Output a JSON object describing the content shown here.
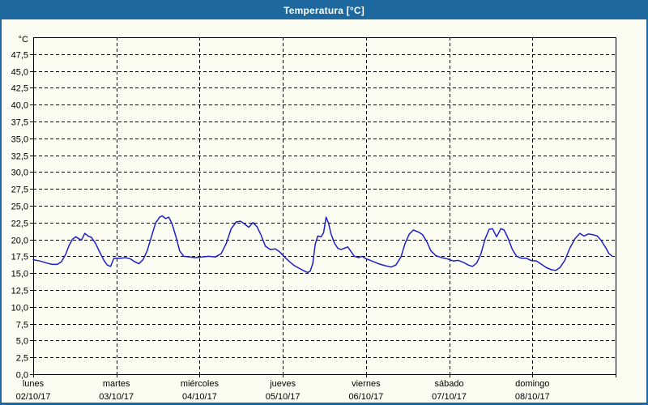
{
  "window": {
    "title": "Temperatura [°C]"
  },
  "colors": {
    "titlebar_bg": "#1d689f",
    "window_border": "#1d689f",
    "window_bg": "#fbfcf2",
    "title_text": "#ffffff",
    "axis_text": "#000000",
    "grid": "#000000",
    "plot_border": "#000000",
    "series_line": "#1f1fc8"
  },
  "chart_data": {
    "type": "line",
    "title": "Temperatura [°C]",
    "legend": "none",
    "grid": "dashed",
    "y_axis": {
      "label": "°C",
      "min": 0,
      "max": 50,
      "tick_step": 2.5,
      "tick_labels": [
        "0,0",
        "2,5",
        "5,0",
        "7,5",
        "10,0",
        "12,5",
        "15,0",
        "17,5",
        "20,0",
        "22,5",
        "25,0",
        "27,5",
        "30,0",
        "32,5",
        "35,0",
        "37,5",
        "40,0",
        "42,5",
        "45,0",
        "47,5"
      ]
    },
    "x_axis": {
      "range_days": [
        0,
        7
      ],
      "days": [
        {
          "name": "lunes",
          "date": "02/10/17"
        },
        {
          "name": "martes",
          "date": "03/10/17"
        },
        {
          "name": "miércoles",
          "date": "04/10/17"
        },
        {
          "name": "jueves",
          "date": "05/10/17"
        },
        {
          "name": "viernes",
          "date": "06/10/17"
        },
        {
          "name": "sábado",
          "date": "07/10/17"
        },
        {
          "name": "domingo",
          "date": "08/10/17"
        }
      ]
    },
    "series": [
      {
        "name": "Temperatura",
        "unit": "°C",
        "points": [
          [
            0.0,
            17.0
          ],
          [
            0.08,
            16.8
          ],
          [
            0.16,
            16.5
          ],
          [
            0.23,
            16.3
          ],
          [
            0.29,
            16.3
          ],
          [
            0.34,
            16.7
          ],
          [
            0.39,
            17.8
          ],
          [
            0.43,
            19.1
          ],
          [
            0.47,
            20.0
          ],
          [
            0.51,
            20.4
          ],
          [
            0.55,
            20.1
          ],
          [
            0.58,
            19.9
          ],
          [
            0.62,
            20.9
          ],
          [
            0.66,
            20.5
          ],
          [
            0.7,
            20.3
          ],
          [
            0.75,
            19.4
          ],
          [
            0.8,
            18.1
          ],
          [
            0.85,
            16.9
          ],
          [
            0.89,
            16.2
          ],
          [
            0.93,
            16.0
          ],
          [
            0.97,
            17.2
          ],
          [
            1.04,
            17.2
          ],
          [
            1.11,
            17.3
          ],
          [
            1.17,
            17.1
          ],
          [
            1.22,
            16.7
          ],
          [
            1.27,
            16.4
          ],
          [
            1.32,
            17.0
          ],
          [
            1.37,
            18.3
          ],
          [
            1.42,
            20.4
          ],
          [
            1.47,
            22.4
          ],
          [
            1.52,
            23.3
          ],
          [
            1.55,
            23.5
          ],
          [
            1.59,
            23.1
          ],
          [
            1.63,
            23.3
          ],
          [
            1.67,
            22.3
          ],
          [
            1.72,
            20.2
          ],
          [
            1.76,
            18.3
          ],
          [
            1.81,
            17.5
          ],
          [
            1.88,
            17.4
          ],
          [
            1.95,
            17.3
          ],
          [
            2.03,
            17.4
          ],
          [
            2.11,
            17.5
          ],
          [
            2.19,
            17.4
          ],
          [
            2.26,
            17.9
          ],
          [
            2.32,
            19.4
          ],
          [
            2.38,
            21.6
          ],
          [
            2.44,
            22.6
          ],
          [
            2.49,
            22.7
          ],
          [
            2.54,
            22.3
          ],
          [
            2.59,
            21.8
          ],
          [
            2.64,
            22.5
          ],
          [
            2.69,
            21.9
          ],
          [
            2.74,
            20.6
          ],
          [
            2.79,
            19.0
          ],
          [
            2.85,
            18.5
          ],
          [
            2.91,
            18.6
          ],
          [
            2.96,
            18.2
          ],
          [
            3.02,
            17.4
          ],
          [
            3.08,
            16.7
          ],
          [
            3.14,
            16.1
          ],
          [
            3.2,
            15.7
          ],
          [
            3.26,
            15.3
          ],
          [
            3.3,
            15.1
          ],
          [
            3.33,
            15.3
          ],
          [
            3.36,
            16.4
          ],
          [
            3.39,
            19.3
          ],
          [
            3.42,
            20.5
          ],
          [
            3.46,
            20.4
          ],
          [
            3.49,
            21.0
          ],
          [
            3.52,
            23.3
          ],
          [
            3.55,
            22.4
          ],
          [
            3.58,
            20.8
          ],
          [
            3.62,
            19.5
          ],
          [
            3.66,
            18.7
          ],
          [
            3.7,
            18.5
          ],
          [
            3.74,
            18.7
          ],
          [
            3.78,
            18.9
          ],
          [
            3.82,
            18.2
          ],
          [
            3.86,
            17.5
          ],
          [
            3.91,
            17.3
          ],
          [
            3.95,
            17.5
          ],
          [
            3.99,
            17.2
          ],
          [
            4.07,
            16.8
          ],
          [
            4.15,
            16.4
          ],
          [
            4.23,
            16.1
          ],
          [
            4.3,
            15.9
          ],
          [
            4.36,
            16.2
          ],
          [
            4.42,
            17.4
          ],
          [
            4.47,
            19.4
          ],
          [
            4.52,
            20.8
          ],
          [
            4.57,
            21.4
          ],
          [
            4.63,
            21.1
          ],
          [
            4.68,
            20.7
          ],
          [
            4.73,
            19.7
          ],
          [
            4.78,
            18.3
          ],
          [
            4.84,
            17.6
          ],
          [
            4.91,
            17.3
          ],
          [
            4.98,
            17.1
          ],
          [
            5.05,
            16.8
          ],
          [
            5.11,
            16.9
          ],
          [
            5.17,
            16.6
          ],
          [
            5.23,
            16.2
          ],
          [
            5.28,
            16.0
          ],
          [
            5.33,
            16.5
          ],
          [
            5.38,
            17.8
          ],
          [
            5.43,
            20.0
          ],
          [
            5.48,
            21.5
          ],
          [
            5.52,
            21.6
          ],
          [
            5.57,
            20.4
          ],
          [
            5.62,
            21.6
          ],
          [
            5.66,
            21.4
          ],
          [
            5.71,
            20.1
          ],
          [
            5.76,
            18.5
          ],
          [
            5.81,
            17.5
          ],
          [
            5.87,
            17.2
          ],
          [
            5.93,
            17.2
          ],
          [
            5.98,
            16.9
          ],
          [
            6.05,
            16.8
          ],
          [
            6.11,
            16.3
          ],
          [
            6.17,
            15.8
          ],
          [
            6.23,
            15.5
          ],
          [
            6.28,
            15.4
          ],
          [
            6.33,
            15.8
          ],
          [
            6.39,
            16.9
          ],
          [
            6.45,
            18.7
          ],
          [
            6.51,
            20.1
          ],
          [
            6.57,
            20.9
          ],
          [
            6.62,
            20.5
          ],
          [
            6.67,
            20.8
          ],
          [
            6.73,
            20.7
          ],
          [
            6.78,
            20.5
          ],
          [
            6.83,
            19.8
          ],
          [
            6.88,
            18.8
          ],
          [
            6.92,
            17.9
          ],
          [
            6.96,
            17.5
          ]
        ]
      }
    ]
  }
}
